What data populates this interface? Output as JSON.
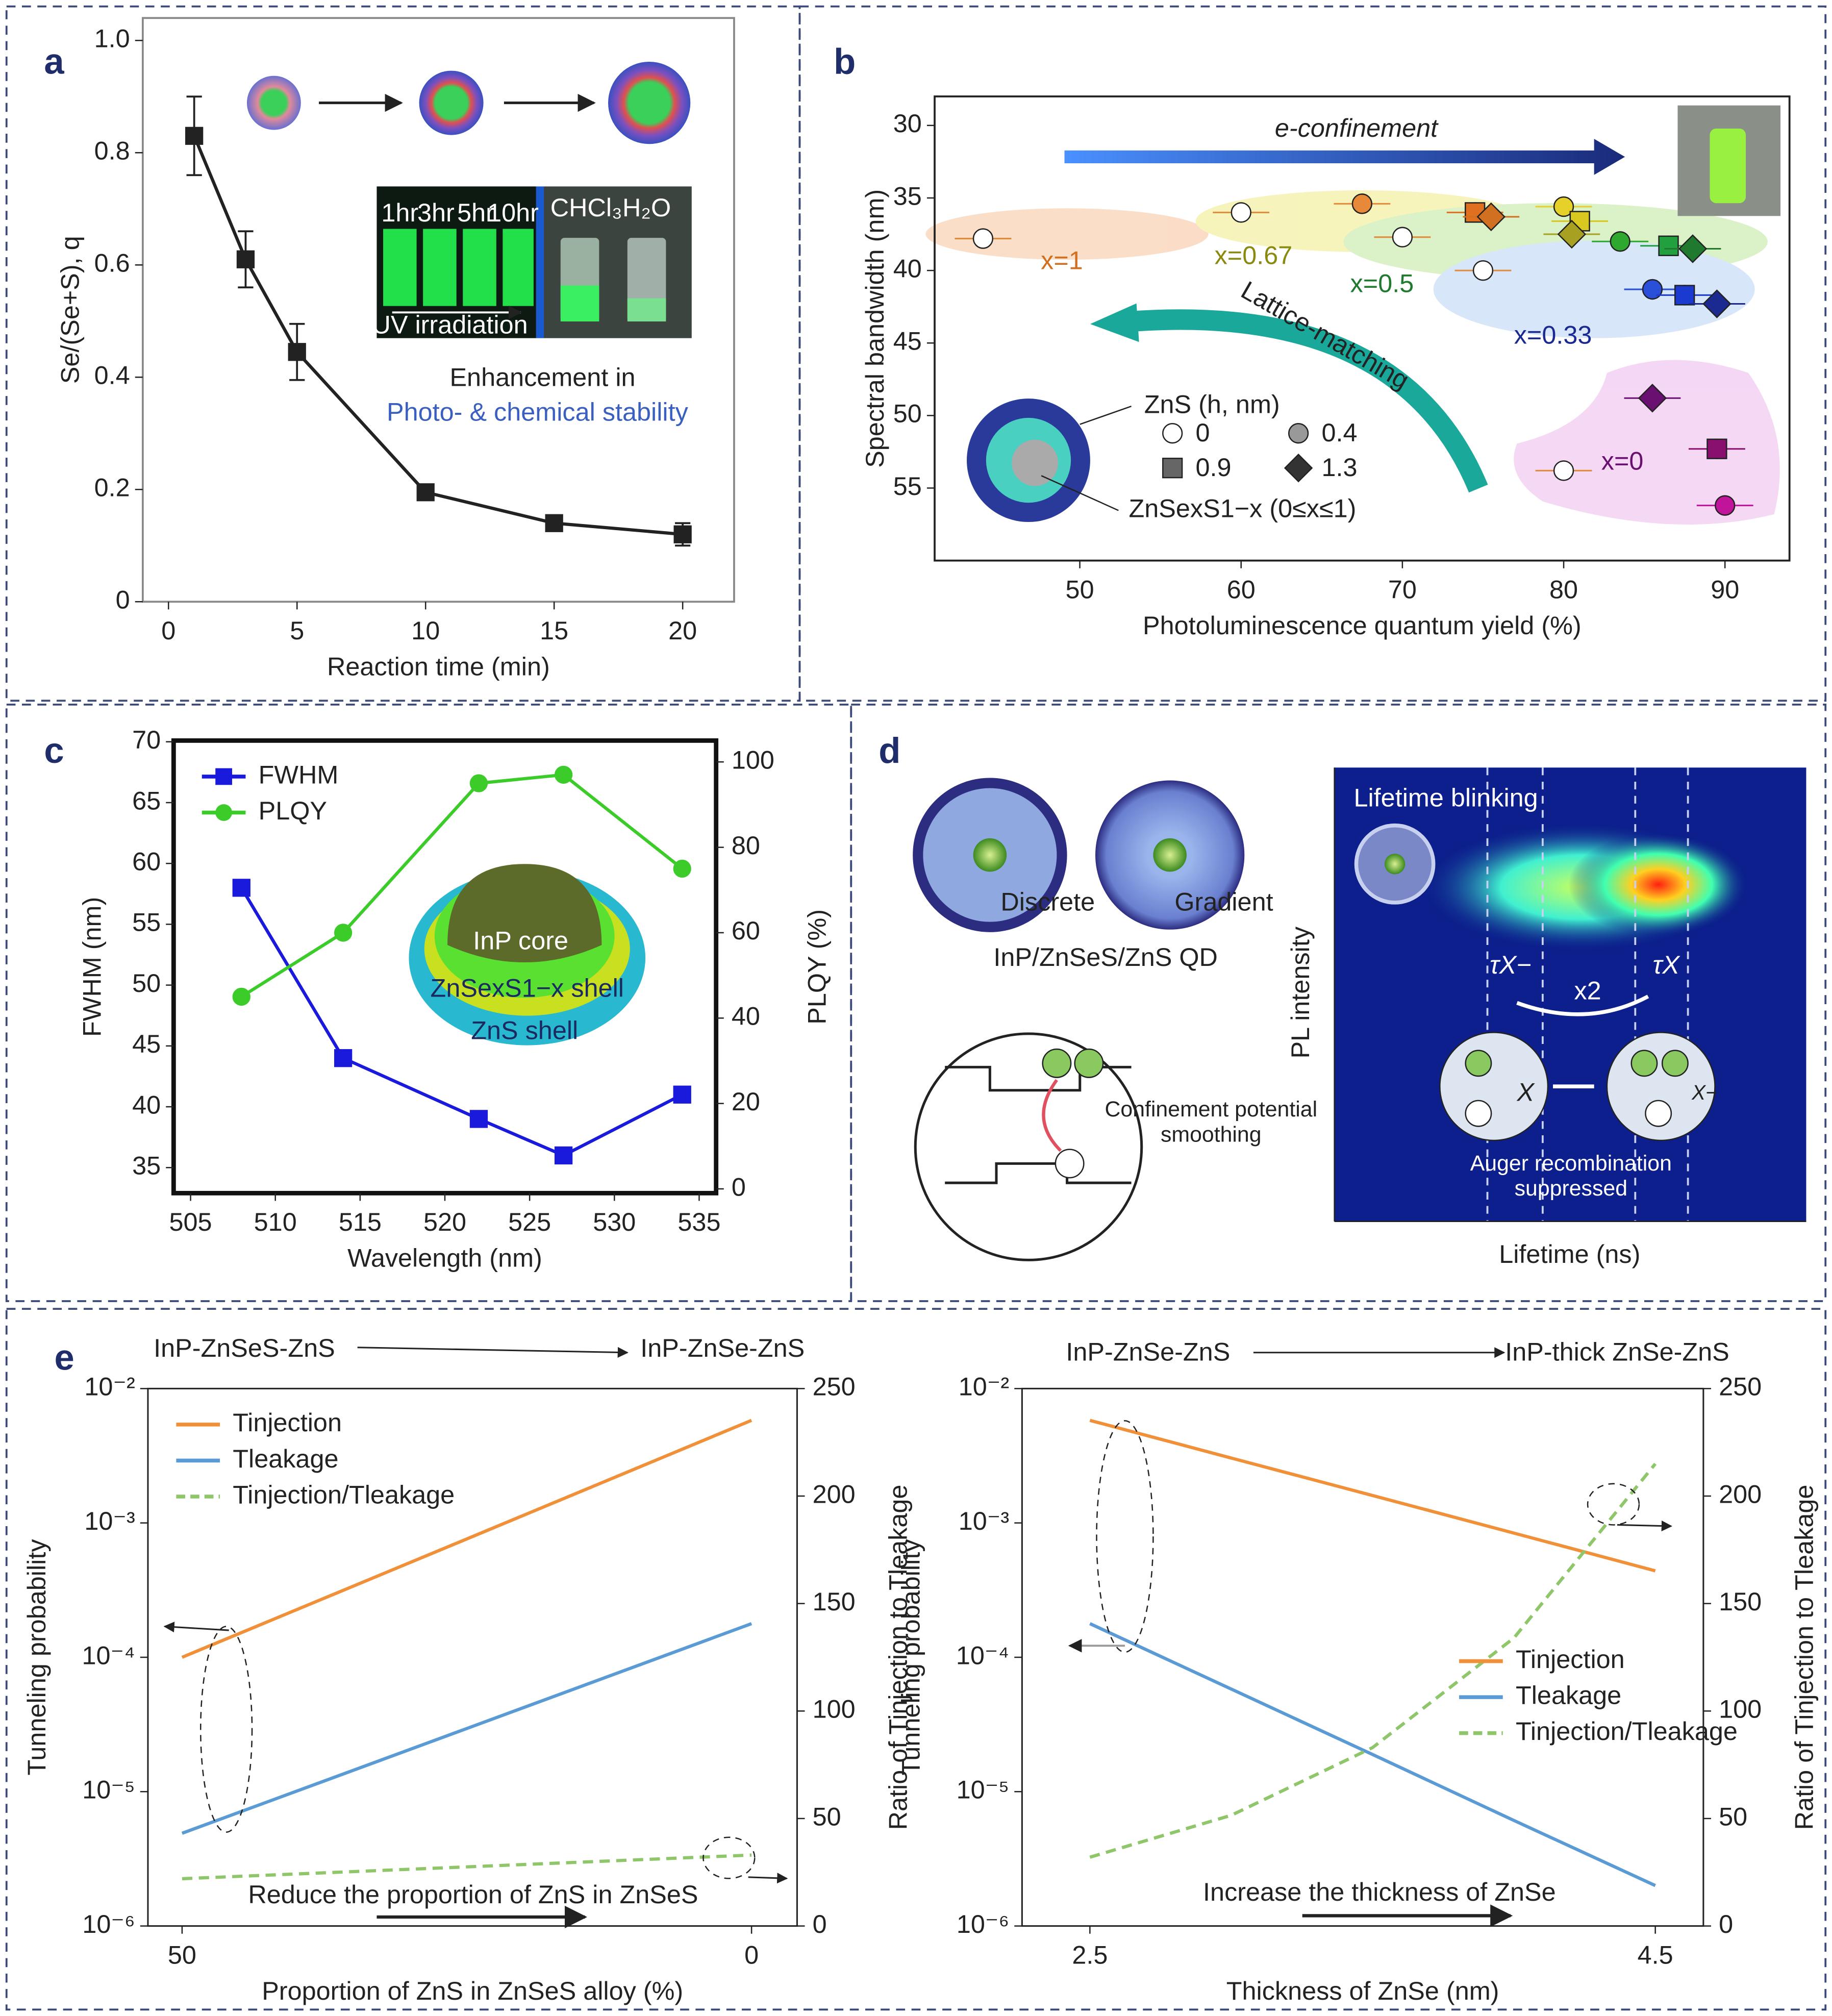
{
  "chart_data": [
    {
      "panel": "a",
      "type": "line",
      "xlabel": "Reaction time (min)",
      "ylabel": "Se/(Se+S), q",
      "xlim": [
        -1,
        22
      ],
      "xticks": [
        0,
        5,
        10,
        15,
        20
      ],
      "ylim": [
        0,
        1.04
      ],
      "yticks": [
        0,
        0.2,
        0.4,
        0.6,
        0.8,
        {
          "value": 1,
          "label": "1.0"
        }
      ],
      "x": [
        1,
        3,
        5,
        10,
        15,
        20
      ],
      "series": [
        {
          "color": "#222222",
          "marker": "square",
          "values": [
            0.83,
            0.61,
            0.445,
            0.195,
            0.14,
            0.12
          ],
          "errors": [
            0.07,
            0.05,
            0.05,
            0.01,
            0.01,
            0.02
          ]
        }
      ],
      "annotations": [
        "Enhancement in",
        "Photo- & chemical stability"
      ],
      "inset_labels": [
        "1hr",
        "3hr",
        "5hr",
        "10hr",
        "UV irradiation",
        "CHCl₃",
        "H₂O"
      ]
    },
    {
      "panel": "b",
      "type": "scatter",
      "xlabel": "Photoluminescence quantum yield (%)",
      "ylabel": "Spectral bandwidth (nm)",
      "xlim": [
        41,
        94
      ],
      "xticks": [
        50,
        60,
        70,
        80,
        90
      ],
      "ylim": [
        60,
        28
      ],
      "yticks": [
        30,
        35,
        40,
        45,
        50,
        55
      ],
      "legend_title": "ZnS (h, nm)",
      "series": [
        {
          "name": "0",
          "marker": "circle",
          "color": "#ffffff",
          "x": [
            44,
            60,
            70,
            75,
            80
          ],
          "values": [
            37.8,
            36,
            37.7,
            40,
            53.8
          ]
        },
        {
          "name": "0.4",
          "marker": "circle",
          "color": "#999999",
          "x": [
            67.5,
            80,
            83.5,
            85.5,
            90
          ],
          "values": [
            35.4,
            35.6,
            38,
            41.3,
            56.2
          ],
          "colors": [
            "#e8893a",
            "#e6d02a",
            "#2fa82f",
            "#2a4fd8",
            "#c0149a"
          ]
        },
        {
          "name": "0.9",
          "marker": "square",
          "color": "#666666",
          "x": [
            74.5,
            81,
            86.5,
            87.5,
            89.5
          ],
          "values": [
            36,
            36.6,
            38.3,
            41.7,
            52.3
          ],
          "colors": [
            "#e07020",
            "#d8c820",
            "#22a040",
            "#1a3ad0",
            "#8a1070"
          ]
        },
        {
          "name": "1.3",
          "marker": "diamond",
          "color": "#333333",
          "x": [
            75.5,
            80.5,
            88,
            89.5,
            85.5
          ],
          "values": [
            36.3,
            37.5,
            38.5,
            42.3,
            48.8
          ],
          "colors": [
            "#d07020",
            "#a8a020",
            "#1f7a2f",
            "#1a2a90",
            "#6a1070"
          ]
        }
      ],
      "annotations": [
        "e-confinement",
        "Lattice-matching",
        "x=1",
        "x=0.67",
        "x=0.5",
        "x=0.33",
        "x=0",
        "ZnSexS1−x (0≤x≤1)"
      ]
    },
    {
      "panel": "c",
      "type": "line",
      "xlabel": "Wavelength (nm)",
      "ylabel": "FWHM (nm)",
      "y2label": "PLQY (%)",
      "xlim": [
        504,
        536
      ],
      "xticks": [
        505,
        510,
        515,
        520,
        525,
        530,
        535
      ],
      "ylim": [
        32.9,
        70.1
      ],
      "yticks": [
        35,
        40,
        45,
        50,
        55,
        60,
        65,
        70
      ],
      "y2lim": [
        -1,
        105
      ],
      "y2ticks": [
        0,
        20,
        40,
        60,
        80,
        100
      ],
      "legend": "upper left",
      "x": [
        508,
        514,
        522,
        527,
        534
      ],
      "series": [
        {
          "name": "FWHM",
          "color": "#1a1adc",
          "marker": "square",
          "values": [
            58,
            44,
            39,
            36,
            41
          ]
        },
        {
          "name": "PLQY",
          "color": "#3ccc2a",
          "marker": "circle",
          "axis": "y2",
          "values": [
            45,
            60,
            95,
            97,
            75
          ]
        }
      ],
      "inset_labels": [
        "InP core",
        "ZnSexS1−x shell",
        "ZnS shell"
      ]
    },
    {
      "panel": "e",
      "type": "line",
      "log_y": true,
      "xlabel": "Proportion of ZnS in ZnSeS alloy (%)",
      "ylabel": "Tunneling probability",
      "y2label": "Ratio of Tinjection to Tleakage",
      "xlim": [
        53,
        -4
      ],
      "xticks": [
        50,
        0
      ],
      "ylim": [
        1e-06,
        0.01
      ],
      "yticks": [
        {
          "value": 1e-06,
          "label": "10⁻⁶"
        },
        {
          "value": 1e-05,
          "label": "10⁻⁵"
        },
        {
          "value": 0.0001,
          "label": "10⁻⁴"
        },
        {
          "value": 0.001,
          "label": "10⁻³"
        },
        {
          "value": 0.01,
          "label": "10⁻²"
        }
      ],
      "y2lim": [
        0,
        250
      ],
      "y2ticks": [
        0,
        50,
        100,
        150,
        200,
        250
      ],
      "legend": "upper left",
      "x": [
        50,
        25,
        0
      ],
      "series": [
        {
          "name": "Tinjection",
          "color": "#f0913a",
          "values": [
            0.0001,
            0.00076,
            0.0058
          ]
        },
        {
          "name": "Tleakage",
          "color": "#5b9bd5",
          "values": [
            4.9e-06,
            2.95e-05,
            0.000178
          ]
        },
        {
          "name": "Tinjection/Tleakage",
          "color": "#8fc66a",
          "dashed": true,
          "axis": "y2",
          "values": [
            22,
            27.5,
            33
          ]
        }
      ],
      "annotations": [
        "InP-ZnSeS-ZnS",
        "InP-ZnSe-ZnS",
        "Reduce the proportion of ZnS in ZnSeS"
      ]
    },
    {
      "type": "line",
      "log_y": true,
      "xlabel": "Thickness of ZnSe (nm)",
      "ylabel": "Tunneling probability",
      "y2label": "Ratio of Tinjection to Tleakage",
      "xlim": [
        2.26,
        4.67
      ],
      "xticks": [
        2.5,
        4.5
      ],
      "ylim": [
        1e-06,
        0.01
      ],
      "yticks": [
        {
          "value": 1e-06,
          "label": "10⁻⁶"
        },
        {
          "value": 1e-05,
          "label": "10⁻⁵"
        },
        {
          "value": 0.0001,
          "label": "10⁻⁴"
        },
        {
          "value": 0.001,
          "label": "10⁻³"
        },
        {
          "value": 0.01,
          "label": "10⁻²"
        }
      ],
      "y2lim": [
        0,
        250
      ],
      "y2ticks": [
        0,
        50,
        100,
        150,
        200,
        250
      ],
      "legend": "lower right",
      "x": [
        2.5,
        3,
        3.5,
        4,
        4.5
      ],
      "series": [
        {
          "name": "Tinjection",
          "color": "#f0913a",
          "values": [
            0.0058,
            0.00304,
            0.0016,
            0.00084,
            0.00044
          ]
        },
        {
          "name": "Tleakage",
          "color": "#5b9bd5",
          "values": [
            0.000178,
            5.8e-05,
            1.89e-05,
            6.1e-06,
            2e-06
          ]
        },
        {
          "name": "Tinjection/Tleakage",
          "color": "#8fc66a",
          "dashed": true,
          "axis": "y2",
          "values": [
            32,
            51.5,
            83,
            134,
            215
          ]
        }
      ],
      "annotations": [
        "InP-ZnSe-ZnS",
        "InP-thick ZnSe-ZnS",
        "Increase the thickness of ZnSe"
      ]
    }
  ],
  "panel_d": {
    "panel": "d",
    "structures": [
      "Discrete",
      "Gradient"
    ],
    "caption": "InP/ZnSeS/ZnS QD",
    "potential_label": "Confinement potential smoothing",
    "map_title": "Lifetime blinking",
    "tau_x_minus": "τX−",
    "ratio": "x2",
    "tau_x": "τX",
    "state_x": "X",
    "state_x_minus": "X−",
    "auger_label": "Auger recombination suppressed",
    "ylabel": "PL intensity",
    "xlabel": "Lifetime (ns)"
  }
}
